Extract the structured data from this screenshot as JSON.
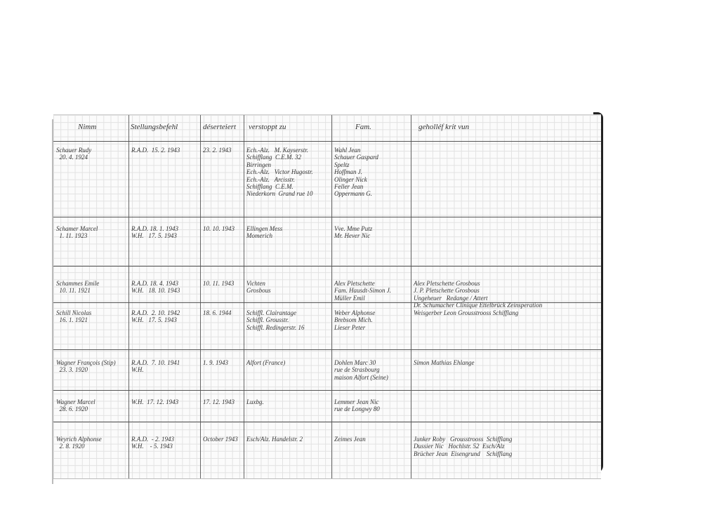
{
  "headers": [
    "Nimm",
    "Stellungsbefehl",
    "déserteiert",
    "verstoppt zu",
    "Fam.",
    "geholléf krit vun"
  ],
  "rows": [
    {
      "name": "Schauer Rudy\n  20. 4. 1924",
      "order": "R.A.D.  15. 2. 1943",
      "deserted": "23. 2. 1943",
      "hidden": "Ech.-Alz.   M. Kayserstr.\nSchifflang  C.E.M. 32\nBirringen\nEch.-Alz.   Victor Hugostr.\nEch.-Alz.   Arcisstr.\nSchifflang  C.E.M.\nNiederkorn  Grand rue 10",
      "family": "Wahl Jean\nSchauer Gaspard\nSpeltz\nHoffman J.\nOlinger Nick\nFeller Jean\nOppermann G.",
      "helped": ""
    },
    {
      "name": "Schamer Marcel\n  1. 11. 1923",
      "order": "R.A.D. 18. 1. 1943\nW.H.   17. 5. 1943",
      "deserted": "10. 10. 1943",
      "hidden": "Ellingen Mess\nMomerich",
      "family": "Vve. Mme Putz\nMr. Hever Nic",
      "helped": ""
    },
    {
      "name": "Schammes Emile\n  10. 11. 1921",
      "order": "R.A.D. 18. 4. 1943\nW.H.   18. 10. 1943",
      "deserted": "10. 11. 1943",
      "hidden": "Vichten\nGrosbous",
      "family": "Alex Pletschette\nFam. Hausdt-Simon J.\nMüller Emil",
      "helped": "Alex Pletschette Grosbous\nJ. P. Pletschette Grosbous\nUngeheuer   Redange / Attert\nDr. Schumacher Clinique Ettelbrück Zeinsperation"
    },
    {
      "name": "Schill Nicolas\n  16. 1. 1921",
      "order": "R.A.D.  2. 10. 1942\nW.H.   17. 5. 1943",
      "deserted": "18. 6. 1944",
      "hidden": "Schiffl. Clairantage\nSchiffl. Grousstr.\nSchiffl. Redingerstr. 16",
      "family": "Weber Alphonse\nBrebsom Mich.\nLieser Peter",
      "helped": "Weisgerber Leon Grousstrooss Schifflang"
    },
    {
      "name": "Wagner François (Stip)\n  23. 3. 1920",
      "order": "R.A.D.  7. 10. 1941\nW.H.",
      "deserted": "1. 9. 1943",
      "hidden": "Alfort (France)",
      "family": "Dohlen Marc 30\nrue de Strasbourg\nmaison Alfort (Seine)",
      "helped": "Simon Mathias Ehlange"
    },
    {
      "name": "Wagner Marcel\n  28. 6. 1920",
      "order": "W.H.  17. 12. 1943",
      "deserted": "17. 12. 1943",
      "hidden": "Luxbg.",
      "family": "Lemmer Jean Nic\nrue de Longwy 80",
      "helped": ""
    },
    {
      "name": "Weyrich Alphonse\n  2. 8. 1920",
      "order": "R.A.D.  - 2. 1943\nW.H.    - 5. 1943",
      "deserted": "October 1943",
      "hidden": "Esch/Alz. Handelstr. 2",
      "family": "Zeimes Jean",
      "helped": "Junker Roby   Grousstrooss  Schifflang\nDussier Nic   Hochlstr. 52  Esch/Alz\nBrücher Jean  Eisengrund    Schifflang"
    }
  ]
}
